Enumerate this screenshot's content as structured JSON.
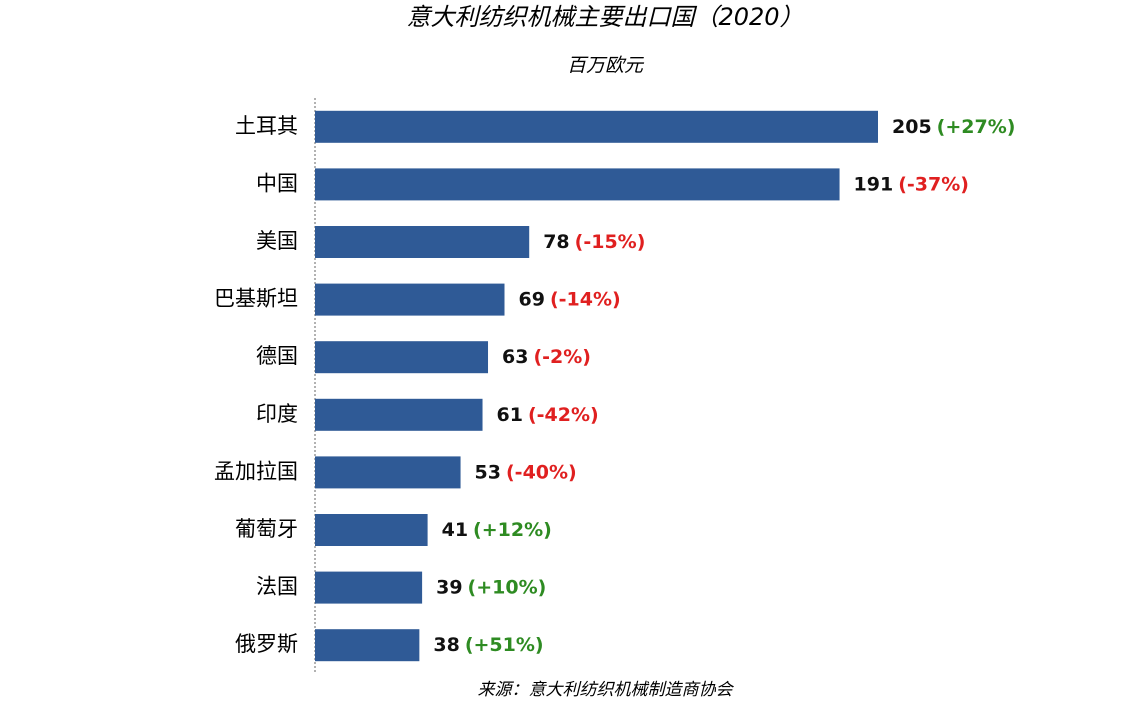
{
  "chart_data": {
    "type": "bar",
    "orientation": "horizontal",
    "title": "意大利纺织机械主要出口国（2020）",
    "subtitle": "百万欧元",
    "source": "来源：意大利纺织机械制造商协会",
    "categories": [
      "土耳其",
      "中国",
      "美国",
      "巴基斯坦",
      "德国",
      "印度",
      "孟加拉国",
      "葡萄牙",
      "法国",
      "俄罗斯"
    ],
    "values": [
      205,
      191,
      78,
      69,
      63,
      61,
      53,
      41,
      39,
      38
    ],
    "changes": [
      "(+27%)",
      "(-37%)",
      "(-15%)",
      "(-14%)",
      "(-2%)",
      "(-42%)",
      "(-40%)",
      "(+12%)",
      "(+10%)",
      "(+51%)"
    ],
    "color": "#2f5a96",
    "positive_color": "#2e8b22",
    "negative_color": "#e02020",
    "xlim": [
      0,
      205
    ]
  }
}
